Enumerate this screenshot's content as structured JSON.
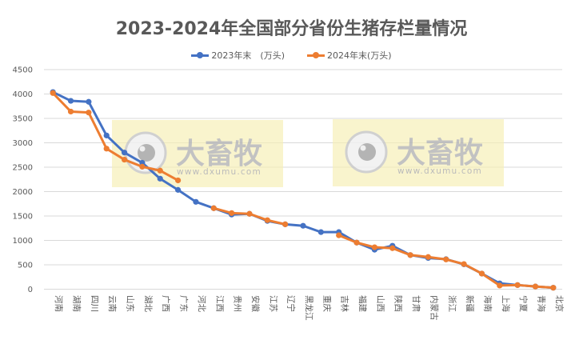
{
  "chart_data": {
    "type": "line",
    "title": "2023-2024年全国部分省份生猪存栏量情况",
    "xlabel": "",
    "ylabel": "",
    "ylim": [
      0,
      4500
    ],
    "yticks": [
      0,
      500,
      1000,
      1500,
      2000,
      2500,
      3000,
      3500,
      4000,
      4500
    ],
    "grid": true,
    "legend_position": "top",
    "categories": [
      "河南",
      "湖南",
      "四川",
      "云南",
      "山东",
      "湖北",
      "广西",
      "广东",
      "河北",
      "江西",
      "贵州",
      "安徽",
      "江苏",
      "辽宁",
      "黑龙江",
      "重庆",
      "吉林",
      "福建",
      "山西",
      "陕西",
      "甘肃",
      "内蒙古",
      "浙江",
      "新疆",
      "海南",
      "上海",
      "宁夏",
      "青海",
      "北京"
    ],
    "series": [
      {
        "name": "2023年末　(万头)",
        "color": "#4472C4",
        "values": [
          4040,
          3860,
          3840,
          3150,
          2800,
          2590,
          2265,
          2035,
          1790,
          1660,
          1530,
          1545,
          1400,
          1330,
          1300,
          1170,
          1170,
          955,
          810,
          890,
          700,
          640,
          615,
          510,
          320,
          120,
          85,
          55,
          30
        ]
      },
      {
        "name": "2024年末(万头)",
        "color": "#ED7D31",
        "values": [
          4020,
          3640,
          3620,
          2880,
          2655,
          2510,
          2430,
          2230,
          null,
          1660,
          1560,
          1545,
          1415,
          1330,
          null,
          null,
          1105,
          955,
          860,
          840,
          700,
          660,
          610,
          515,
          320,
          75,
          85,
          55,
          30
        ]
      }
    ]
  },
  "watermark": {
    "brand": "大畜牧",
    "url": "www.dxumu.com"
  }
}
